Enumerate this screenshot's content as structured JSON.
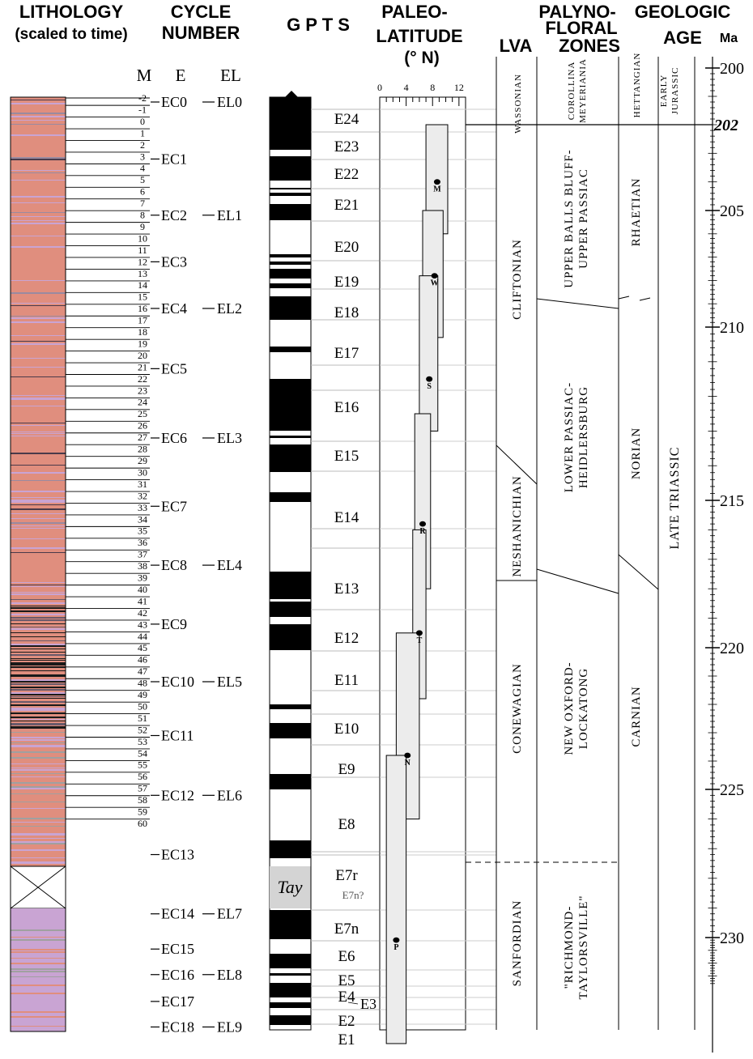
{
  "headers": {
    "lithology": [
      "LITHOLOGY",
      "(scaled to time)"
    ],
    "cycle": [
      "CYCLE",
      "NUMBER"
    ],
    "cycle_sub": [
      "M",
      "E",
      "EL"
    ],
    "gpts": "G P T S",
    "paleolat": [
      "PALEO-",
      "LATITUDE",
      "(° N)"
    ],
    "lva": "LVA",
    "palyno": [
      "PALYNO-",
      "FLORAL",
      "ZONES"
    ],
    "geologic": [
      "GEOLOGIC",
      "AGE"
    ],
    "ma": "Ma"
  },
  "ma_scale": {
    "labels": [
      "200",
      "202",
      "205",
      "210",
      "215",
      "220",
      "225",
      "230"
    ],
    "highlight": "202"
  },
  "m_cycles": [
    "-2",
    "-1",
    "0",
    "1",
    "2",
    "3",
    "4",
    "5",
    "6",
    "7",
    "8",
    "9",
    "10",
    "11",
    "12",
    "13",
    "14",
    "15",
    "16",
    "17",
    "18",
    "19",
    "20",
    "21",
    "22",
    "23",
    "24",
    "25",
    "26",
    "27",
    "28",
    "29",
    "30",
    "31",
    "32",
    "33",
    "34",
    "35",
    "36",
    "37",
    "38",
    "39",
    "40",
    "41",
    "42",
    "43",
    "44",
    "45",
    "46",
    "47",
    "48",
    "49",
    "50",
    "51",
    "52",
    "53",
    "54",
    "55",
    "56",
    "57",
    "58",
    "59",
    "60"
  ],
  "e_cycles": [
    {
      "label": "EC0",
      "ma": 201.2
    },
    {
      "label": "EC1",
      "ma": 203.2
    },
    {
      "label": "EC2",
      "ma": 205.2
    },
    {
      "label": "EC3",
      "ma": 207.2
    },
    {
      "label": "EC4",
      "ma": 209.2
    },
    {
      "label": "EC5",
      "ma": 211.2
    },
    {
      "label": "EC6",
      "ma": 213.2
    },
    {
      "label": "EC7",
      "ma": 215.2
    },
    {
      "label": "EC8",
      "ma": 217.2
    },
    {
      "label": "EC9",
      "ma": 219.2
    },
    {
      "label": "EC10",
      "ma": 221.2
    },
    {
      "label": "EC11",
      "ma": 223.1
    },
    {
      "label": "EC12",
      "ma": 225.2
    },
    {
      "label": "EC13",
      "ma": 227.2
    },
    {
      "label": "EC14",
      "ma": 229.2
    },
    {
      "label": "EC15",
      "ma": 230.9
    },
    {
      "label": "EC16",
      "ma": 232.9
    },
    {
      "label": "EC17",
      "ma": 235.0
    },
    {
      "label": "EC18",
      "ma": 237.0
    }
  ],
  "el_cycles": [
    {
      "label": "EL0",
      "ma": 201.2
    },
    {
      "label": "EL1",
      "ma": 205.2
    },
    {
      "label": "EL2",
      "ma": 209.2
    },
    {
      "label": "EL3",
      "ma": 213.2
    },
    {
      "label": "EL4",
      "ma": 217.2
    },
    {
      "label": "EL5",
      "ma": 221.2
    },
    {
      "label": "EL6",
      "ma": 225.2
    },
    {
      "label": "EL7",
      "ma": 229.2
    },
    {
      "label": "EL8",
      "ma": 232.9
    },
    {
      "label": "EL9",
      "ma": 237.0
    }
  ],
  "gpts_chrons": [
    {
      "label": "E24",
      "ma": 201.5
    },
    {
      "label": "E23",
      "ma": 202.8
    },
    {
      "label": "E22",
      "ma": 203.8
    },
    {
      "label": "E21",
      "ma": 205.1
    },
    {
      "label": "E20",
      "ma": 206.4
    },
    {
      "label": "E19",
      "ma": 208.5
    },
    {
      "label": "E18",
      "ma": 209.7
    },
    {
      "label": "E17",
      "ma": 211.2
    },
    {
      "label": "E16",
      "ma": 213.3
    },
    {
      "label": "E15",
      "ma": 215.3
    },
    {
      "label": "E14",
      "ma": 217.6
    },
    {
      "label": "E13",
      "ma": 220.2
    },
    {
      "label": "E12",
      "ma": 222.0
    },
    {
      "label": "E11",
      "ma": 223.6
    },
    {
      "label": "E10",
      "ma": 225.2
    },
    {
      "label": "E9",
      "ma": 226.8
    },
    {
      "label": "E8",
      "ma": 228.6
    },
    {
      "label": "E7r",
      "ma": 230.3
    },
    {
      "label": "E7n",
      "ma": 233.4
    },
    {
      "label": "E6",
      "ma": 234.6
    },
    {
      "label": "E5",
      "ma": 235.8
    },
    {
      "label": "E4",
      "ma": 236.4
    },
    {
      "label": "E2",
      "ma": 237.8
    },
    {
      "label": "E1",
      "ma": 238.8
    }
  ],
  "gpts_extra": {
    "tay": "Tay",
    "e7n_q": "E7n?",
    "e3": "E3"
  },
  "paleolat_axis": {
    "ticks": [
      "0",
      "4",
      "8",
      "12"
    ],
    "range": [
      0,
      13
    ]
  },
  "paleolat_points": [
    {
      "label": "M",
      "lat": 8.7,
      "ma": 204.0,
      "lat_min": 7.0,
      "lat_max": 10.3,
      "ma_top": 202.0,
      "ma_bot": 206.0
    },
    {
      "label": "W",
      "lat": 8.3,
      "ma": 207.8,
      "lat_min": 6.5,
      "lat_max": 9.6,
      "ma_top": 205.0,
      "ma_bot": 210.3
    },
    {
      "label": "S",
      "lat": 7.5,
      "ma": 211.5,
      "lat_min": 6.0,
      "lat_max": 8.8,
      "ma_top": 207.8,
      "ma_bot": 213.0
    },
    {
      "label": "R",
      "lat": 6.5,
      "ma": 215.8,
      "lat_min": 5.3,
      "lat_max": 7.7,
      "ma_top": 212.5,
      "ma_bot": 218.0
    },
    {
      "label": "T",
      "lat": 6.0,
      "ma": 219.5,
      "lat_min": 5.0,
      "lat_max": 7.0,
      "ma_top": 216.0,
      "ma_bot": 221.8
    },
    {
      "label": "N",
      "lat": 4.2,
      "ma": 223.8,
      "lat_min": 2.5,
      "lat_max": 6.0,
      "ma_top": 219.5,
      "ma_bot": 226.0
    },
    {
      "label": "P",
      "lat": 2.5,
      "ma": 230.2,
      "lat_min": 1.0,
      "lat_max": 4.0,
      "ma_top": 223.8,
      "ma_bot": 238.3
    }
  ],
  "lva_zones": [
    {
      "label": "WASSONIAN",
      "ma_top": 200.0,
      "ma_bot": 202.0
    },
    {
      "label": "CLIFTONIAN",
      "ma_top": 202.0,
      "ma_bot": 214.0
    },
    {
      "label": "NESHANICHIAN",
      "ma_top": 214.0,
      "ma_bot": 218.5
    },
    {
      "label": "CONEWAGIAN",
      "ma_top": 218.5,
      "ma_bot": 229.7
    },
    {
      "label": "SANFORDIAN",
      "ma_top": 229.7,
      "ma_bot": 239.0
    }
  ],
  "palyno_zones": [
    {
      "lines": [
        "COROLLINA",
        "MEYERIANIA"
      ],
      "ma_top": 200.0,
      "ma_bot": 202.0
    },
    {
      "lines": [
        "UPPER BALLS BLUFF-",
        "UPPER PASSIAC"
      ],
      "ma_top": 202.0,
      "ma_bot": 209.0
    },
    {
      "lines": [
        "LOWER PASSIAC-",
        "HEIDLERSBURG"
      ],
      "ma_top": 209.0,
      "ma_bot": 218.0
    },
    {
      "lines": [
        "NEW OXFORD-",
        "LOCKATONG"
      ],
      "ma_top": 218.0,
      "ma_bot": 229.7
    },
    {
      "lines": [
        "\"RICHMOND-",
        "TAYLORSVILLE\""
      ],
      "ma_top": 229.7,
      "ma_bot": 239.0
    }
  ],
  "stages": [
    {
      "label": "HETTANGIAN",
      "ma_top": 200.0,
      "ma_bot": 202.0
    },
    {
      "label": "RHAETIAN",
      "ma_top": 202.0,
      "ma_bot": 209.3
    },
    {
      "label": "NORIAN",
      "ma_top": 209.3,
      "ma_bot": 220.0
    },
    {
      "label": "CARNIAN",
      "ma_top": 220.0,
      "ma_bot": 239.0
    }
  ],
  "epochs": [
    {
      "lines": [
        "EARLY",
        "JURASSIC"
      ],
      "ma_top": 200.0,
      "ma_bot": 202.0
    },
    {
      "lines": [
        "LATE TRIASSIC"
      ],
      "ma_top": 202.0,
      "ma_bot": 239.0
    }
  ],
  "colors": {
    "salmon": "#e08e7e",
    "lilac": "#c9a4d3",
    "gray_band": "#a0a0a0",
    "black": "#000000",
    "box_fill": "#ececec",
    "grid": "#bbbbbb",
    "tay_fill": "#d4d4d4"
  }
}
